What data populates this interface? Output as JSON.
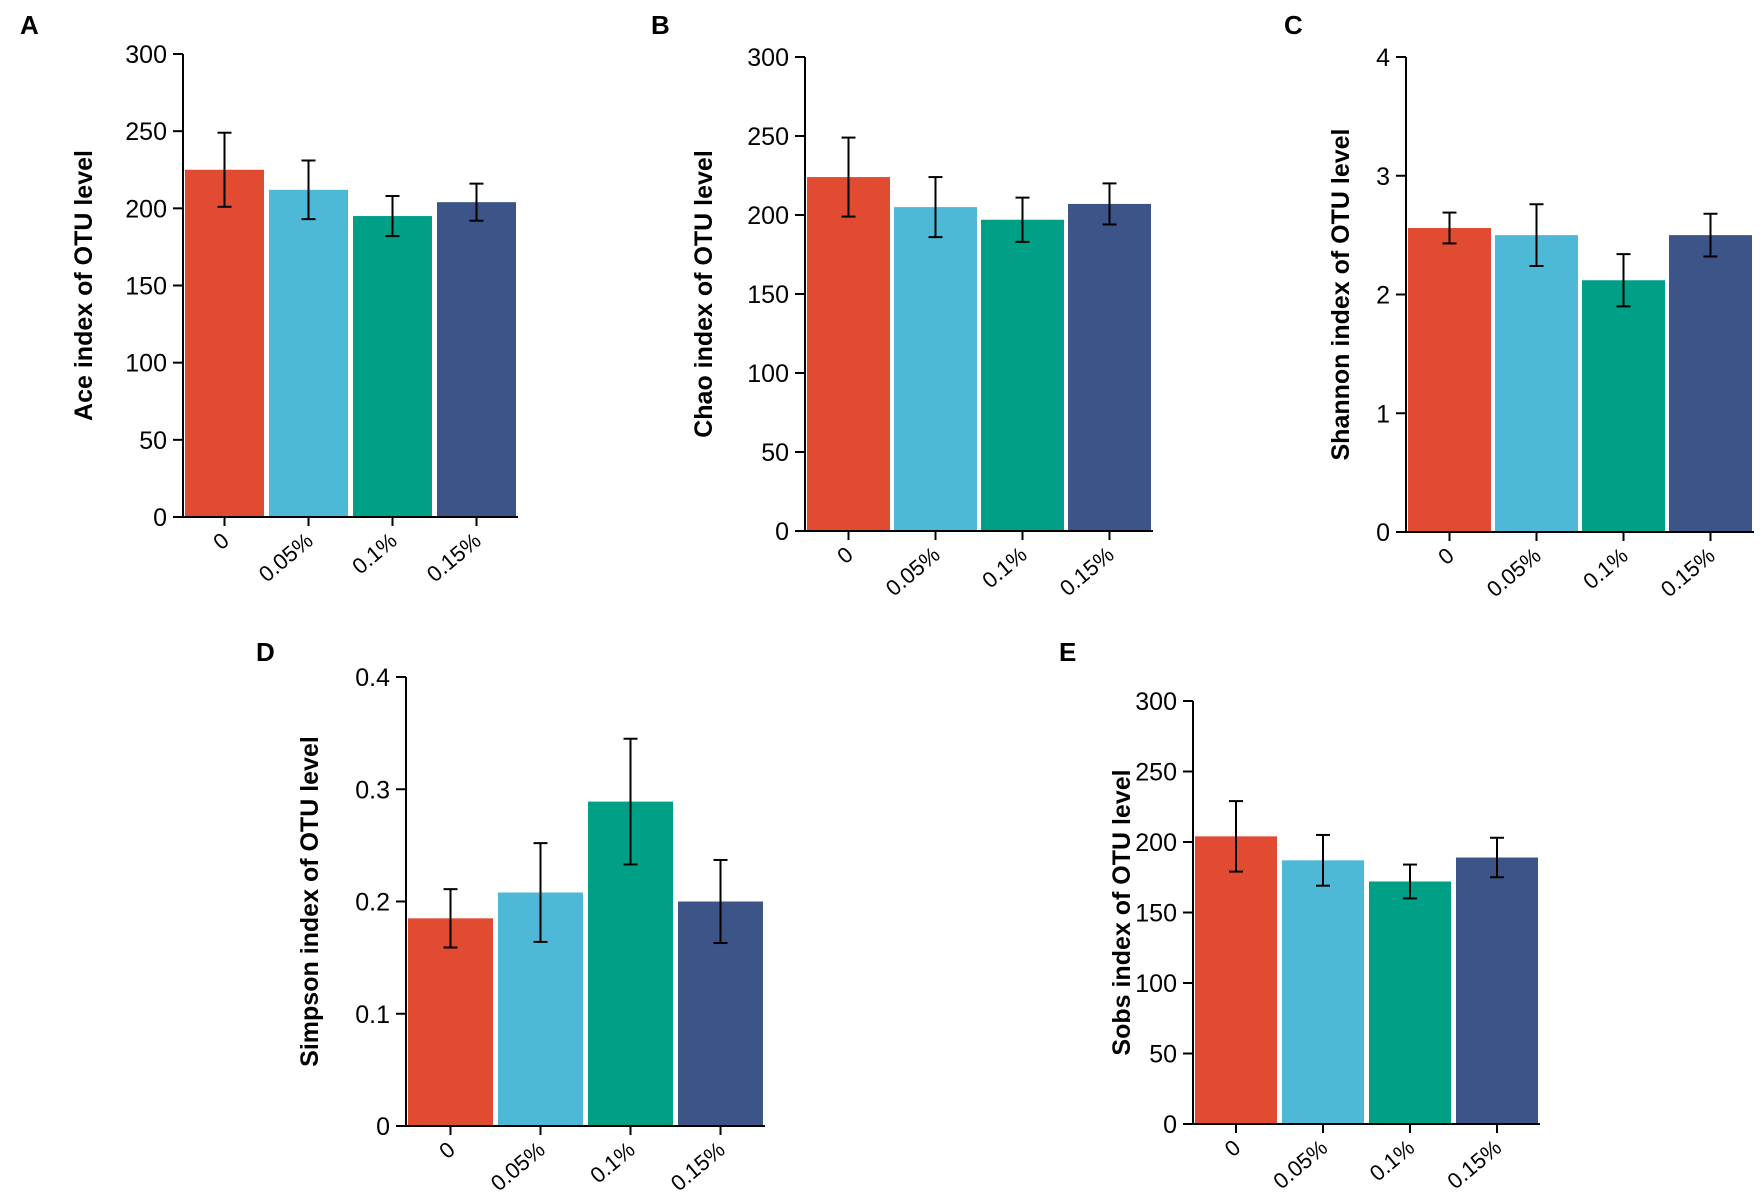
{
  "colors": [
    "#E14B32",
    "#4DB9D6",
    "#00A087",
    "#3C5488"
  ],
  "chart_data": [
    {
      "panel": "A",
      "type": "bar",
      "categories": [
        "0",
        "0.05%",
        "0.1%",
        "0.15%"
      ],
      "values": [
        225,
        212,
        195,
        204
      ],
      "errors": [
        24,
        19,
        13,
        12
      ],
      "ylabel": "Ace index of OTU level",
      "ylim": [
        0,
        300
      ],
      "yticks": [
        "0",
        "50",
        "100",
        "150",
        "200",
        "250",
        "300"
      ],
      "ytick_values": [
        0,
        50,
        100,
        150,
        200,
        250,
        300
      ]
    },
    {
      "panel": "B",
      "type": "bar",
      "categories": [
        "0",
        "0.05%",
        "0.1%",
        "0.15%"
      ],
      "values": [
        224,
        205,
        197,
        207
      ],
      "errors": [
        25,
        19,
        14,
        13
      ],
      "ylabel": "Chao index of OTU level",
      "ylim": [
        0,
        300
      ],
      "yticks": [
        "0",
        "50",
        "100",
        "150",
        "200",
        "250",
        "300"
      ],
      "ytick_values": [
        0,
        50,
        100,
        150,
        200,
        250,
        300
      ]
    },
    {
      "panel": "C",
      "type": "bar",
      "categories": [
        "0",
        "0.05%",
        "0.1%",
        "0.15%"
      ],
      "values": [
        2.56,
        2.5,
        2.12,
        2.5
      ],
      "errors": [
        0.13,
        0.26,
        0.22,
        0.18
      ],
      "ylabel": "Shannon index of OTU level",
      "ylim": [
        0,
        4
      ],
      "yticks": [
        "0",
        "1",
        "2",
        "3",
        "4"
      ],
      "ytick_values": [
        0,
        1,
        2,
        3,
        4
      ]
    },
    {
      "panel": "D",
      "type": "bar",
      "categories": [
        "0",
        "0.05%",
        "0.1%",
        "0.15%"
      ],
      "values": [
        0.185,
        0.208,
        0.289,
        0.2
      ],
      "errors": [
        0.026,
        0.044,
        0.056,
        0.037
      ],
      "ylabel": "Simpson index of OTU level",
      "ylim": [
        0,
        0.4
      ],
      "yticks": [
        "0",
        "0.1",
        "0.2",
        "0.3",
        "0.4"
      ],
      "ytick_values": [
        0,
        0.1,
        0.2,
        0.3,
        0.4
      ]
    },
    {
      "panel": "E",
      "type": "bar",
      "categories": [
        "0",
        "0.05%",
        "0.1%",
        "0.15%"
      ],
      "values": [
        204,
        187,
        172,
        189
      ],
      "errors": [
        25,
        18,
        12,
        14
      ],
      "ylabel": "Sobs index of OTU level",
      "ylim": [
        0,
        300
      ],
      "yticks": [
        "0",
        "50",
        "100",
        "150",
        "200",
        "250",
        "300"
      ],
      "ytick_values": [
        0,
        50,
        100,
        150,
        200,
        250,
        300
      ]
    }
  ]
}
